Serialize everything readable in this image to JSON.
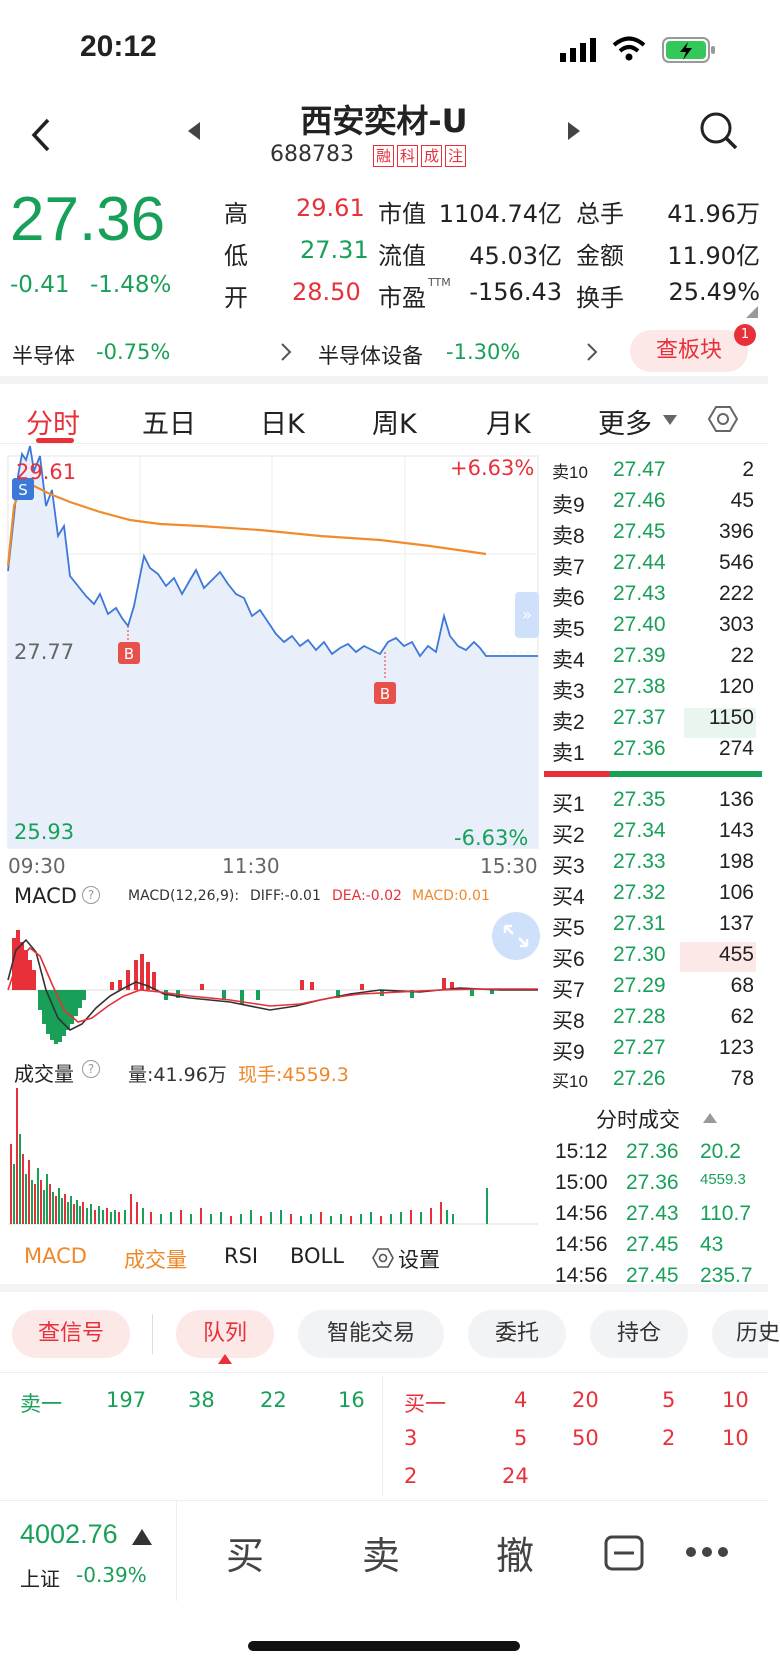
{
  "status": {
    "time": "20:12"
  },
  "header": {
    "title": "西安奕材-U",
    "code": "688783",
    "tags": [
      "融",
      "科",
      "成",
      "注"
    ]
  },
  "quote": {
    "price": "27.36",
    "change": "-0.41",
    "change_pct": "-1.48%",
    "stats": [
      {
        "l1": "高",
        "v1": "29.61",
        "l2": "市值",
        "v2": "1104.74亿",
        "l3": "总手",
        "v3": "41.96万"
      },
      {
        "l1": "低",
        "v1": "27.31",
        "l2": "流值",
        "v2": "45.03亿",
        "l3": "金额",
        "v3": "11.90亿"
      },
      {
        "l1": "开",
        "v1": "28.50",
        "l2": "市盈",
        "sup": "TTM",
        "v2": "-156.43",
        "l3": "换手",
        "v3": "25.49%"
      }
    ]
  },
  "sector": {
    "s1_name": "半导体",
    "s1_pct": "-0.75%",
    "s2_name": "半导体设备",
    "s2_pct": "-1.30%",
    "button": "查板块",
    "badge": "1"
  },
  "tabs": [
    "分时",
    "五日",
    "日K",
    "周K",
    "月K",
    "更多"
  ],
  "chart": {
    "high_label": "29.61",
    "mid_label": "27.77",
    "low_label": "25.93",
    "up_pct": "+6.63%",
    "down_pct": "-6.63%",
    "times": [
      "09:30",
      "11:30",
      "15:30"
    ],
    "markers": [
      "S",
      "B",
      "B"
    ]
  },
  "macd": {
    "title": "MACD",
    "params": "MACD(12,26,9):",
    "diff": "DIFF:-0.01",
    "dea": "DEA:-0.02",
    "macd": "MACD:0.01"
  },
  "volume": {
    "title": "成交量",
    "amount": "量:41.96万",
    "current": "现手:4559.3"
  },
  "indicator_tabs": [
    "MACD",
    "成交量",
    "RSI",
    "BOLL",
    "设置"
  ],
  "orderbook": {
    "asks": [
      [
        "卖10",
        "27.47",
        "2"
      ],
      [
        "卖9",
        "27.46",
        "45"
      ],
      [
        "卖8",
        "27.45",
        "396"
      ],
      [
        "卖7",
        "27.44",
        "546"
      ],
      [
        "卖6",
        "27.43",
        "222"
      ],
      [
        "卖5",
        "27.40",
        "303"
      ],
      [
        "卖4",
        "27.39",
        "22"
      ],
      [
        "卖3",
        "27.38",
        "120"
      ],
      [
        "卖2",
        "27.37",
        "1150"
      ],
      [
        "卖1",
        "27.36",
        "274"
      ]
    ],
    "bids": [
      [
        "买1",
        "27.35",
        "136"
      ],
      [
        "买2",
        "27.34",
        "143"
      ],
      [
        "买3",
        "27.33",
        "198"
      ],
      [
        "买4",
        "27.32",
        "106"
      ],
      [
        "买5",
        "27.31",
        "137"
      ],
      [
        "买6",
        "27.30",
        "455"
      ],
      [
        "买7",
        "27.29",
        "68"
      ],
      [
        "买8",
        "27.28",
        "62"
      ],
      [
        "买9",
        "27.27",
        "123"
      ],
      [
        "买10",
        "27.26",
        "78"
      ]
    ]
  },
  "trades": {
    "title": "分时成交",
    "rows": [
      [
        "15:12",
        "27.36",
        "20.2"
      ],
      [
        "15:00",
        "27.36",
        "4559.3"
      ],
      [
        "14:56",
        "27.43",
        "110.7"
      ],
      [
        "14:56",
        "27.45",
        "43"
      ],
      [
        "14:56",
        "27.45",
        "235.7"
      ]
    ]
  },
  "bottom_tabs": [
    "查信号",
    "队列",
    "智能交易",
    "委托",
    "持仓",
    "历史"
  ],
  "queue": {
    "sell_label": "卖一",
    "sell": [
      "197",
      "38",
      "22",
      "16"
    ],
    "buy_label": "买一",
    "buy": [
      [
        "4",
        "20",
        "5",
        "10"
      ],
      [
        "3",
        "5",
        "50",
        "2",
        "10"
      ],
      [
        "2",
        "24"
      ]
    ]
  },
  "index": {
    "value": "4002.76",
    "name": "上证",
    "pct": "-0.39%"
  },
  "actions": [
    "买",
    "卖",
    "撤"
  ]
}
